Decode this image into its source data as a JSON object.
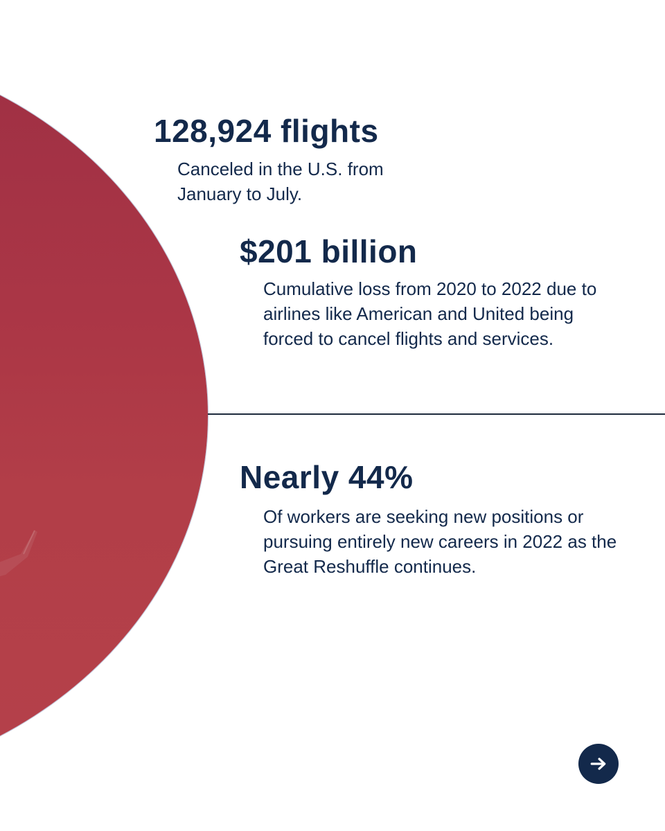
{
  "stats": [
    {
      "value": "128,924 flights",
      "description": "Canceled in the U.S. from January to July."
    },
    {
      "value": "$201 billion",
      "description": "Cumulative loss from 2020 to 2022 due to airlines like American and United being forced to cancel flights and services."
    },
    {
      "value": "Nearly 44%",
      "description": "Of workers are seeking new positions or pursuing entirely new careers in 2022 as the Great Reshuffle continues."
    }
  ],
  "icons": {
    "next": "arrow-right-icon"
  },
  "colors": {
    "text": "#13294b",
    "circle": "#b23e48",
    "button": "#13294b",
    "background": "#ffffff"
  }
}
